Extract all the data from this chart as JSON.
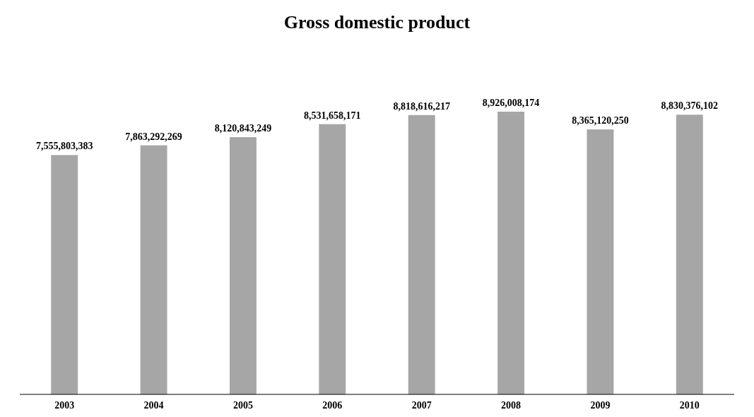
{
  "chart_data": {
    "type": "bar",
    "title": "Gross domestic product",
    "categories": [
      "2003",
      "2004",
      "2005",
      "2006",
      "2007",
      "2008",
      "2009",
      "2010"
    ],
    "values": [
      7555803383,
      7863292269,
      8120843249,
      8531658171,
      8818616217,
      8926008174,
      8365120250,
      8830376102
    ],
    "value_labels": [
      "7,555,803,383",
      "7,863,292,269",
      "8,120,843,249",
      "8,531,658,171",
      "8,818,616,217",
      "8,926,008,174",
      "8,365,120,250",
      "8,830,376,102"
    ],
    "color": "#a6a6a6",
    "relative": false
  }
}
